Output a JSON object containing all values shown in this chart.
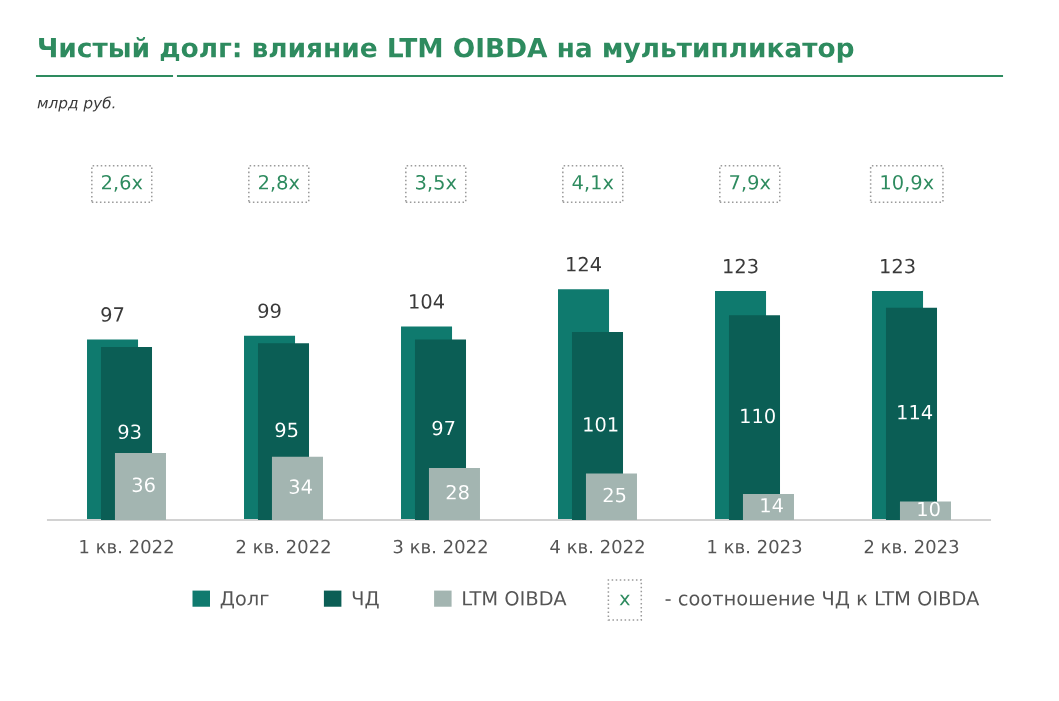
{
  "chart_data": {
    "type": "bar",
    "title": "Чистый долг: влияние LTM OIBDA на мультипликатор",
    "categories": [
      "1 кв. 2022",
      "2 кв. 2022",
      "3 кв. 2022",
      "4 кв. 2022",
      "1 кв. 2023",
      "2 кв. 2023"
    ],
    "series": [
      {
        "name": "Долг",
        "color": "#0f7a6e",
        "values": [
          97,
          99,
          104,
          124,
          123,
          123
        ]
      },
      {
        "name": "ЧД",
        "color": "#0b5e55",
        "values": [
          93,
          95,
          97,
          101,
          110,
          114
        ]
      },
      {
        "name": "LTM OIBDA",
        "color": "#a3b5b1",
        "values": [
          36,
          34,
          28,
          25,
          14,
          10
        ]
      }
    ],
    "data_labels": true,
    "legend": "bottom",
    "annotations": [
      "млрд руб.",
      "2,6x",
      "2,8x",
      "3,5x",
      "4,1x",
      "7,9x",
      "10,9x",
      "x",
      "- соотношение ЧД к LTM OIBDA"
    ]
  }
}
